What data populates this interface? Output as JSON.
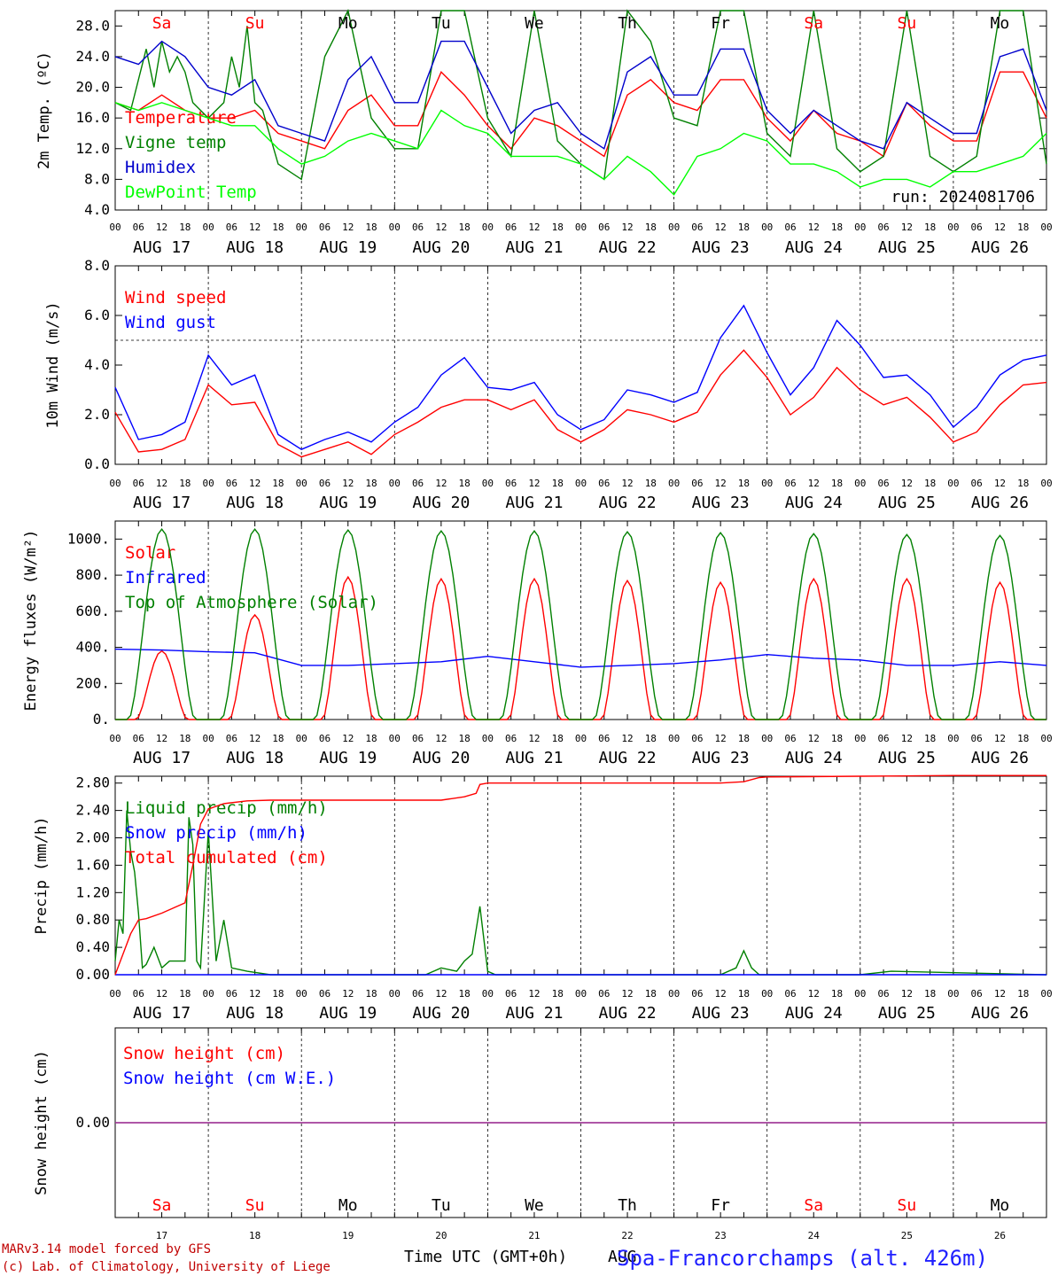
{
  "chart_data": [
    {
      "type": "line",
      "title": "",
      "ylabel": "2m Temp. (ºC)",
      "ylim": [
        4,
        30
      ],
      "yticks": [
        "4.0",
        "8.0",
        "12.0",
        "16.0",
        "20.0",
        "24.0",
        "28.0"
      ],
      "run_label": "run: 2024081706",
      "series": [
        {
          "name": "Temperature",
          "color": "#ff0000",
          "x": [
            0,
            6,
            12,
            18,
            24,
            30,
            36,
            42,
            48,
            54,
            60,
            66,
            72,
            78,
            84,
            90,
            96,
            102,
            108,
            114,
            120,
            126,
            132,
            138,
            144,
            150,
            156,
            162,
            168,
            174,
            180,
            186,
            192,
            198,
            204,
            210,
            216,
            222,
            228,
            234,
            240
          ],
          "y": [
            18,
            17,
            19,
            17,
            16,
            16,
            17,
            14,
            13,
            12,
            17,
            19,
            15,
            15,
            22,
            19,
            15,
            12,
            16,
            15,
            13,
            11,
            19,
            21,
            18,
            17,
            21,
            21,
            16,
            13,
            17,
            14,
            13,
            11,
            18,
            15,
            13,
            13,
            22,
            22,
            16
          ]
        },
        {
          "name": "Vigne temp",
          "color": "#008000",
          "x": [
            0,
            4,
            8,
            10,
            12,
            14,
            16,
            18,
            20,
            24,
            28,
            30,
            32,
            34,
            36,
            38,
            42,
            48,
            54,
            60,
            66,
            72,
            78,
            84,
            90,
            96,
            102,
            108,
            114,
            120,
            126,
            132,
            138,
            144,
            150,
            156,
            162,
            168,
            174,
            180,
            186,
            192,
            198,
            204,
            210,
            216,
            222,
            228,
            234,
            240
          ],
          "y": [
            18,
            17,
            25,
            20,
            26,
            22,
            24,
            22,
            18,
            16,
            18,
            24,
            20,
            28,
            18,
            17,
            10,
            8,
            24,
            30,
            16,
            12,
            12,
            30,
            30,
            16,
            11,
            30,
            13,
            10,
            8,
            30,
            26,
            16,
            15,
            30,
            30,
            14,
            11,
            30,
            12,
            9,
            11,
            30,
            11,
            9,
            11,
            30,
            30,
            10
          ]
        },
        {
          "name": "Humidex",
          "color": "#0000cc",
          "x": [
            0,
            6,
            12,
            18,
            24,
            30,
            36,
            42,
            48,
            54,
            60,
            66,
            72,
            78,
            84,
            90,
            96,
            102,
            108,
            114,
            120,
            126,
            132,
            138,
            144,
            150,
            156,
            162,
            168,
            174,
            180,
            186,
            192,
            198,
            204,
            210,
            216,
            222,
            228,
            234,
            240
          ],
          "y": [
            24,
            23,
            26,
            24,
            20,
            19,
            21,
            15,
            14,
            13,
            21,
            24,
            18,
            18,
            26,
            26,
            20,
            14,
            17,
            18,
            14,
            12,
            22,
            24,
            19,
            19,
            25,
            25,
            17,
            14,
            17,
            15,
            13,
            12,
            18,
            16,
            14,
            14,
            24,
            25,
            17
          ]
        },
        {
          "name": "DewPoint Temp",
          "color": "#00ff00",
          "x": [
            0,
            6,
            12,
            18,
            24,
            30,
            36,
            42,
            48,
            54,
            60,
            66,
            72,
            78,
            84,
            90,
            96,
            102,
            108,
            114,
            120,
            126,
            132,
            138,
            144,
            150,
            156,
            162,
            168,
            174,
            180,
            186,
            192,
            198,
            204,
            210,
            216,
            222,
            228,
            234,
            240
          ],
          "y": [
            18,
            17,
            18,
            17,
            16,
            15,
            15,
            12,
            10,
            11,
            13,
            14,
            13,
            12,
            17,
            15,
            14,
            11,
            11,
            11,
            10,
            8,
            11,
            9,
            6,
            11,
            12,
            14,
            13,
            10,
            10,
            9,
            7,
            8,
            8,
            7,
            9,
            9,
            10,
            11,
            14
          ]
        }
      ]
    },
    {
      "type": "line",
      "title": "",
      "ylabel": "10m Wind (m/s)",
      "ylim": [
        0,
        8
      ],
      "yticks": [
        "0.0",
        "2.0",
        "4.0",
        "6.0",
        "8.0"
      ],
      "reference_line": 5,
      "series": [
        {
          "name": "Wind speed",
          "color": "#ff0000",
          "x": [
            0,
            6,
            12,
            18,
            24,
            30,
            36,
            42,
            48,
            54,
            60,
            66,
            72,
            78,
            84,
            90,
            96,
            102,
            108,
            114,
            120,
            126,
            132,
            138,
            144,
            150,
            156,
            162,
            168,
            174,
            180,
            186,
            192,
            198,
            204,
            210,
            216,
            222,
            228,
            234,
            240
          ],
          "y": [
            2.1,
            0.5,
            0.6,
            1.0,
            3.2,
            2.4,
            2.5,
            0.8,
            0.3,
            0.6,
            0.9,
            0.4,
            1.2,
            1.7,
            2.3,
            2.6,
            2.6,
            2.2,
            2.6,
            1.4,
            0.9,
            1.4,
            2.2,
            2.0,
            1.7,
            2.1,
            3.6,
            4.6,
            3.5,
            2.0,
            2.7,
            3.9,
            3.0,
            2.4,
            2.7,
            1.9,
            0.9,
            1.3,
            2.4,
            3.2,
            3.3
          ]
        },
        {
          "name": "Wind gust",
          "color": "#0000ff",
          "x": [
            0,
            6,
            12,
            18,
            24,
            30,
            36,
            42,
            48,
            54,
            60,
            66,
            72,
            78,
            84,
            90,
            96,
            102,
            108,
            114,
            120,
            126,
            132,
            138,
            144,
            150,
            156,
            162,
            168,
            174,
            180,
            186,
            192,
            198,
            204,
            210,
            216,
            222,
            228,
            234,
            240
          ],
          "y": [
            3.1,
            1.0,
            1.2,
            1.7,
            4.4,
            3.2,
            3.6,
            1.2,
            0.6,
            1.0,
            1.3,
            0.9,
            1.7,
            2.3,
            3.6,
            4.3,
            3.1,
            3.0,
            3.3,
            2.0,
            1.4,
            1.8,
            3.0,
            2.8,
            2.5,
            2.9,
            5.1,
            6.4,
            4.5,
            2.8,
            3.9,
            5.8,
            4.8,
            3.5,
            3.6,
            2.8,
            1.5,
            2.3,
            3.6,
            4.2,
            4.4
          ]
        }
      ]
    },
    {
      "type": "line",
      "title": "",
      "ylabel": "Energy fluxes (W/m²)",
      "ylim": [
        0,
        1100
      ],
      "yticks": [
        "0.",
        "200.",
        "400.",
        "600.",
        "800.",
        "1000."
      ],
      "series": [
        {
          "name": "Solar",
          "color": "#ff0000",
          "daily_peak": [
            380,
            580,
            790,
            780,
            780,
            770,
            760,
            780,
            780,
            760
          ]
        },
        {
          "name": "Infrared",
          "color": "#0000ff",
          "x": [
            0,
            12,
            24,
            36,
            48,
            60,
            72,
            84,
            96,
            108,
            120,
            132,
            144,
            156,
            168,
            180,
            192,
            204,
            216,
            228,
            240
          ],
          "y": [
            390,
            385,
            375,
            370,
            300,
            300,
            310,
            320,
            350,
            320,
            290,
            300,
            310,
            330,
            360,
            340,
            330,
            300,
            300,
            320,
            300
          ]
        },
        {
          "name": "Top of Atmosphere (Solar)",
          "color": "#008000",
          "daily_peak": [
            1055,
            1055,
            1050,
            1045,
            1045,
            1040,
            1035,
            1030,
            1025,
            1020
          ]
        }
      ]
    },
    {
      "type": "line",
      "title": "",
      "ylabel": "Precip (mm/h)",
      "ylim": [
        0,
        2.9
      ],
      "yticks": [
        "0.00",
        "0.40",
        "0.80",
        "1.20",
        "1.60",
        "2.00",
        "2.40",
        "2.80"
      ],
      "series": [
        {
          "name": "Liquid precip (mm/h)",
          "color": "#008000",
          "x": [
            0,
            1,
            2,
            3,
            4,
            5,
            6,
            7,
            8,
            10,
            12,
            14,
            16,
            18,
            19,
            20,
            21,
            22,
            24,
            26,
            28,
            30,
            34,
            40,
            48,
            80,
            84,
            88,
            90,
            92,
            94,
            96,
            98,
            100,
            156,
            160,
            162,
            164,
            166,
            192,
            200,
            240
          ],
          "y": [
            0.2,
            0.8,
            0.6,
            2.4,
            1.8,
            1.5,
            0.9,
            0.1,
            0.15,
            0.4,
            0.1,
            0.2,
            0.2,
            0.2,
            2.3,
            1.9,
            0.2,
            0.1,
            2.1,
            0.2,
            0.8,
            0.1,
            0.05,
            0,
            0,
            0,
            0.1,
            0.05,
            0.2,
            0.3,
            1.0,
            0.05,
            0,
            0,
            0,
            0.1,
            0.35,
            0.1,
            0,
            0,
            0.05,
            0
          ]
        },
        {
          "name": "Snow precip (mm/h)",
          "color": "#0000ff",
          "x": [
            0,
            240
          ],
          "y": [
            0,
            0
          ]
        },
        {
          "name": "Total cumulated (cm)",
          "color": "#ff0000",
          "x": [
            0,
            2,
            4,
            6,
            8,
            12,
            18,
            20,
            22,
            24,
            28,
            34,
            40,
            48,
            60,
            72,
            84,
            90,
            93,
            94,
            96,
            108,
            120,
            156,
            162,
            166,
            168,
            192,
            216,
            240
          ],
          "y": [
            0,
            0.3,
            0.6,
            0.8,
            0.82,
            0.9,
            1.05,
            1.6,
            2.2,
            2.42,
            2.5,
            2.54,
            2.55,
            2.55,
            2.55,
            2.55,
            2.55,
            2.6,
            2.65,
            2.78,
            2.8,
            2.8,
            2.8,
            2.8,
            2.82,
            2.88,
            2.89,
            2.9,
            2.91,
            2.91
          ]
        }
      ]
    },
    {
      "type": "line",
      "title": "",
      "ylabel": "Snow height (cm)",
      "ylim": [
        -1,
        1
      ],
      "yticks": [
        "0.00"
      ],
      "series": [
        {
          "name": "Snow height (cm)",
          "color": "#ff0000",
          "x": [
            0,
            240
          ],
          "y": [
            0,
            0
          ]
        },
        {
          "name": "Snow height (cm W.E.)",
          "color": "#0000ff",
          "x": [
            0,
            240
          ],
          "y": [
            0,
            0
          ]
        }
      ]
    }
  ],
  "x_axis": {
    "hour_ticks": [
      "00",
      "06",
      "12",
      "18"
    ],
    "final_tick": "00",
    "dates": [
      "AUG 17",
      "AUG 18",
      "AUG 19",
      "AUG 20",
      "AUG 21",
      "AUG 22",
      "AUG 23",
      "AUG 24",
      "AUG 25",
      "AUG 26"
    ],
    "days": [
      {
        "name": "Sa",
        "color": "#ff0000",
        "num": "17"
      },
      {
        "name": "Su",
        "color": "#ff0000",
        "num": "18"
      },
      {
        "name": "Mo",
        "color": "#000000",
        "num": "19"
      },
      {
        "name": "Tu",
        "color": "#000000",
        "num": "20"
      },
      {
        "name": "We",
        "color": "#000000",
        "num": "21"
      },
      {
        "name": "Th",
        "color": "#000000",
        "num": "22"
      },
      {
        "name": "Fr",
        "color": "#000000",
        "num": "23"
      },
      {
        "name": "Sa",
        "color": "#ff0000",
        "num": "24"
      },
      {
        "name": "Su",
        "color": "#ff0000",
        "num": "25"
      },
      {
        "name": "Mo",
        "color": "#000000",
        "num": "26"
      }
    ]
  },
  "footer": {
    "model_line": "MARv3.14 model forced by GFS",
    "credit_line": "(c) Lab. of Climatology, University of Liege",
    "xlabel": "Time UTC (GMT+0h)",
    "month": "AUG",
    "station": "Spa-Francorchamps (alt. 426m)"
  }
}
